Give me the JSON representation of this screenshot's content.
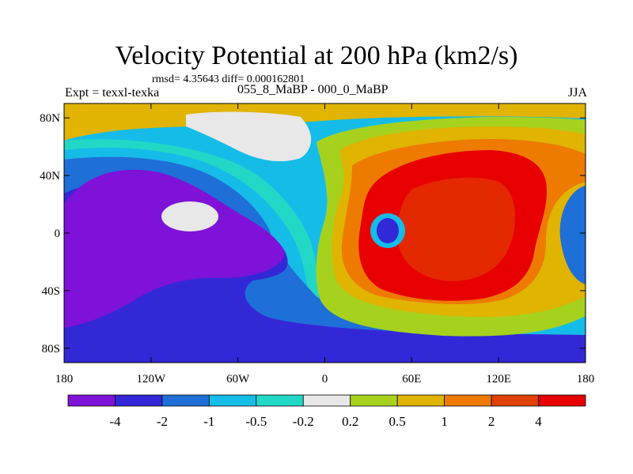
{
  "chart_data": {
    "type": "heatmap",
    "title": "Velocity Potential at 200 hPa (km2/s)",
    "stats": "rmsd= 4.35643 diff= 0.000162801",
    "left_label": "Expt = texxl-texka",
    "center_label": "055_8_MaBP - 000_0_MaBP",
    "right_label": "JJA",
    "x_range": [
      -180,
      180
    ],
    "y_range": [
      -90,
      90
    ],
    "x_ticks": [
      {
        "value": -180,
        "label": "180"
      },
      {
        "value": -120,
        "label": "120W"
      },
      {
        "value": -60,
        "label": "60W"
      },
      {
        "value": 0,
        "label": "0"
      },
      {
        "value": 60,
        "label": "60E"
      },
      {
        "value": 120,
        "label": "120E"
      },
      {
        "value": 180,
        "label": "180"
      }
    ],
    "y_ticks": [
      {
        "value": 80,
        "label": "80N"
      },
      {
        "value": 40,
        "label": "40N"
      },
      {
        "value": 0,
        "label": "0"
      },
      {
        "value": -40,
        "label": "40S"
      },
      {
        "value": -80,
        "label": "80S"
      }
    ],
    "levels": [
      "-4",
      "-2",
      "-1",
      "-0.5",
      "-0.2",
      "0.2",
      "0.5",
      "1",
      "2",
      "4"
    ],
    "colors": [
      "#7E12D8",
      "#3328D8",
      "#1F6FD8",
      "#15BCE8",
      "#21D8C6",
      "#E8E8E8",
      "#A6D21E",
      "#E0B400",
      "#EE7A00",
      "#E04000",
      "#E80000"
    ]
  }
}
